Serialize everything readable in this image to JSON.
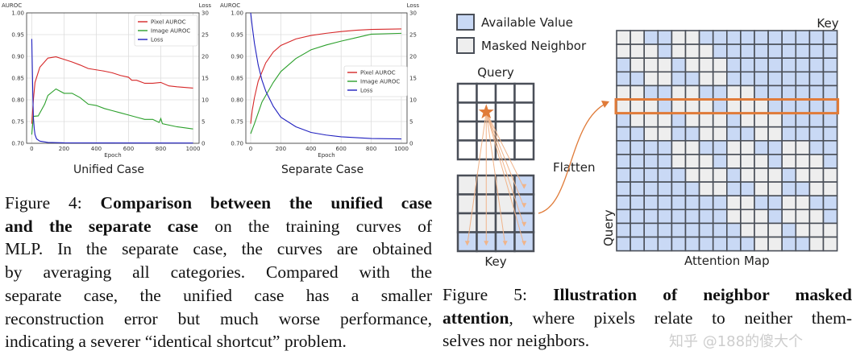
{
  "figure4": {
    "panels": [
      {
        "caption": "Unified Case"
      },
      {
        "caption": "Separate Case"
      }
    ],
    "caption_lines": [
      [
        {
          "t": "Figure 4:  ",
          "b": false
        },
        {
          "t": "Comparison between the unified case",
          "b": true
        }
      ],
      [
        {
          "t": "and the separate case",
          "b": true
        },
        {
          "t": " on the training curves of",
          "b": false
        }
      ],
      [
        {
          "t": "MLP. In the separate case, the curves are obtained",
          "b": false
        }
      ],
      [
        {
          "t": "by averaging all categories. Compared with the",
          "b": false
        }
      ],
      [
        {
          "t": "separate case, the unified case has a smaller",
          "b": false
        }
      ],
      [
        {
          "t": "reconstruction error but much worse performance,",
          "b": false
        }
      ],
      [
        {
          "t": "indicating a severer “identical shortcut” problem.",
          "b": false
        }
      ]
    ]
  },
  "chart_data": [
    {
      "type": "line",
      "title": "",
      "xlabel": "Epoch",
      "ylabel": "AUROC",
      "y2label": "Loss",
      "xlim": [
        0,
        1000
      ],
      "ylim": [
        0.7,
        1.0
      ],
      "y2lim": [
        0,
        30
      ],
      "xticks": [
        0,
        200,
        400,
        600,
        800,
        1000
      ],
      "yticks": [
        "0.70",
        "0.75",
        "0.80",
        "0.85",
        "0.90",
        "0.95",
        "1.00"
      ],
      "y2ticks": [
        0,
        5,
        10,
        15,
        20,
        25,
        30
      ],
      "grid": true,
      "legend": "top-right",
      "series": [
        {
          "name": "Pixel AUROC",
          "axis": "left",
          "color": "#d62728",
          "x": [
            0,
            10,
            20,
            50,
            100,
            150,
            200,
            250,
            300,
            350,
            400,
            450,
            500,
            550,
            600,
            620,
            650,
            700,
            750,
            800,
            850,
            900,
            1000
          ],
          "y": [
            0.745,
            0.8,
            0.84,
            0.875,
            0.896,
            0.899,
            0.893,
            0.887,
            0.88,
            0.872,
            0.869,
            0.866,
            0.862,
            0.856,
            0.852,
            0.845,
            0.845,
            0.838,
            0.838,
            0.84,
            0.832,
            0.83,
            0.827
          ]
        },
        {
          "name": "Image AUROC",
          "axis": "left",
          "color": "#2ca02c",
          "x": [
            0,
            10,
            40,
            80,
            100,
            150,
            200,
            250,
            300,
            350,
            400,
            450,
            500,
            550,
            600,
            650,
            700,
            750,
            790,
            800,
            810,
            900,
            1000
          ],
          "y": [
            0.72,
            0.762,
            0.763,
            0.79,
            0.81,
            0.825,
            0.815,
            0.815,
            0.805,
            0.79,
            0.787,
            0.78,
            0.775,
            0.77,
            0.765,
            0.76,
            0.755,
            0.755,
            0.748,
            0.757,
            0.745,
            0.738,
            0.733
          ]
        },
        {
          "name": "Loss",
          "axis": "right",
          "color": "#1f1fbf",
          "x": [
            0,
            3,
            6,
            10,
            15,
            20,
            30,
            50,
            100,
            200,
            1000
          ],
          "y": [
            24,
            18,
            12,
            6,
            3.5,
            2,
            1,
            0.5,
            0.2,
            0.1,
            0.05
          ]
        }
      ]
    },
    {
      "type": "line",
      "title": "",
      "xlabel": "Epoch",
      "ylabel": "AUROC",
      "y2label": "Loss",
      "xlim": [
        0,
        1000
      ],
      "ylim": [
        0.7,
        1.0
      ],
      "y2lim": [
        0,
        30
      ],
      "xticks": [
        0,
        200,
        400,
        600,
        800,
        1000
      ],
      "yticks": [
        "0.70",
        "0.75",
        "0.80",
        "0.85",
        "0.90",
        "0.95",
        "1.00"
      ],
      "y2ticks": [
        0,
        5,
        10,
        15,
        20,
        25,
        30
      ],
      "grid": true,
      "legend": "center-right",
      "series": [
        {
          "name": "Pixel AUROC",
          "axis": "left",
          "color": "#d62728",
          "x": [
            0,
            10,
            25,
            50,
            100,
            150,
            200,
            300,
            400,
            500,
            600,
            700,
            800,
            1000
          ],
          "y": [
            0.745,
            0.775,
            0.805,
            0.843,
            0.885,
            0.91,
            0.925,
            0.94,
            0.948,
            0.953,
            0.957,
            0.96,
            0.962,
            0.963
          ]
        },
        {
          "name": "Image AUROC",
          "axis": "left",
          "color": "#2ca02c",
          "x": [
            0,
            25,
            50,
            75,
            100,
            150,
            200,
            300,
            400,
            500,
            600,
            700,
            800,
            1000
          ],
          "y": [
            0.722,
            0.745,
            0.77,
            0.795,
            0.81,
            0.84,
            0.865,
            0.895,
            0.915,
            0.926,
            0.935,
            0.943,
            0.951,
            0.953
          ]
        },
        {
          "name": "Loss",
          "axis": "right",
          "color": "#1f1fbf",
          "x": [
            0,
            10,
            25,
            50,
            75,
            100,
            150,
            200,
            300,
            400,
            500,
            600,
            800,
            1000
          ],
          "y": [
            30,
            27,
            23,
            18,
            14.5,
            12,
            8.5,
            6,
            3.8,
            2.5,
            1.9,
            1.5,
            1.1,
            1.0
          ]
        }
      ]
    }
  ],
  "figure5": {
    "legend": [
      {
        "label": "Available Value",
        "color": "#c9d9f5"
      },
      {
        "label": "Masked Neighbor",
        "color": "#eeeeee"
      }
    ],
    "query_label": "Query",
    "key_label": "Key",
    "flatten_label": "Flatten",
    "map_key_label": "Key",
    "map_query_label": "Query",
    "map_title": "Attention Map",
    "accent_color": "#e07b39",
    "grid_size": 4,
    "query_position": [
      1,
      1
    ],
    "caption_lines": [
      [
        {
          "t": "Figure 5:   ",
          "b": false
        },
        {
          "t": "Illustration of neighbor masked",
          "b": true
        }
      ],
      [
        {
          "t": "attention",
          "b": true
        },
        {
          "t": ", where pixels relate to neither them-",
          "b": false
        }
      ],
      [
        {
          "t": "selves nor neighbors.",
          "b": false
        }
      ]
    ],
    "watermark": "知乎 @188的傻大个"
  }
}
